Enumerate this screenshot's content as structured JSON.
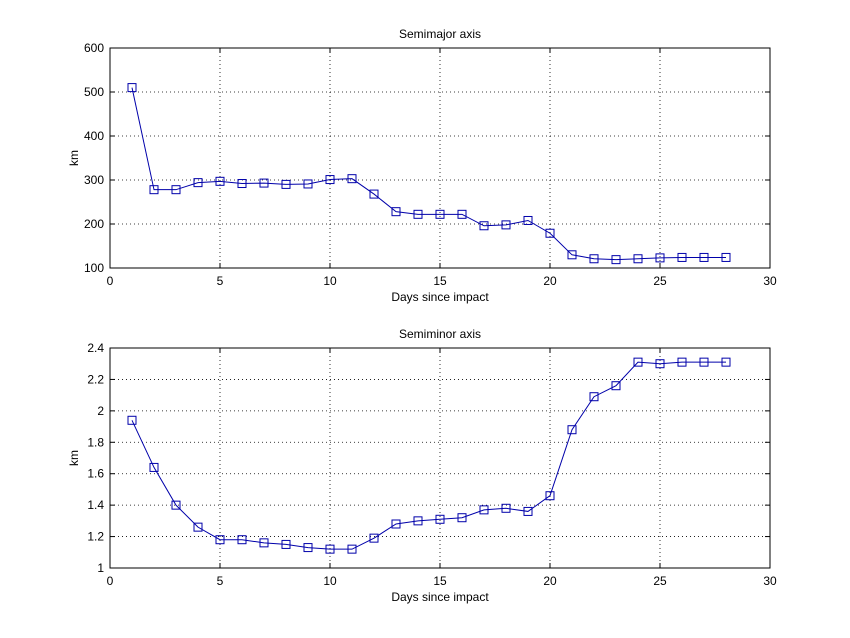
{
  "chart_data": [
    {
      "type": "line",
      "title": "Semimajor axis",
      "xlabel": "Days since impact",
      "ylabel": "km",
      "xlim": [
        0,
        30
      ],
      "ylim": [
        100,
        600
      ],
      "xticks": [
        "0",
        "5",
        "10",
        "15",
        "20",
        "25",
        "30"
      ],
      "yticks": [
        "100",
        "200",
        "300",
        "400",
        "500",
        "600"
      ],
      "grid": true,
      "color": "#0000aa",
      "marker": "square",
      "x": [
        1,
        2,
        3,
        4,
        5,
        6,
        7,
        8,
        9,
        10,
        11,
        12,
        13,
        14,
        15,
        16,
        17,
        18,
        19,
        20,
        21,
        22,
        23,
        24,
        25,
        26,
        27,
        28
      ],
      "values": [
        510,
        278,
        278,
        294,
        297,
        292,
        293,
        290,
        291,
        301,
        303,
        268,
        228,
        222,
        222,
        222,
        196,
        198,
        208,
        179,
        130,
        121,
        119,
        121,
        123,
        124,
        124,
        124
      ]
    },
    {
      "type": "line",
      "title": "Semiminor axis",
      "xlabel": "Days since impact",
      "ylabel": "km",
      "xlim": [
        0,
        30
      ],
      "ylim": [
        1,
        2.4
      ],
      "xticks": [
        "0",
        "5",
        "10",
        "15",
        "20",
        "25",
        "30"
      ],
      "yticks": [
        "1",
        "1.2",
        "1.4",
        "1.6",
        "1.8",
        "2",
        "2.2",
        "2.4"
      ],
      "grid": true,
      "color": "#0000aa",
      "marker": "square",
      "x": [
        1,
        2,
        3,
        4,
        5,
        6,
        7,
        8,
        9,
        10,
        11,
        12,
        13,
        14,
        15,
        16,
        17,
        18,
        19,
        20,
        21,
        22,
        23,
        24,
        25,
        26,
        27,
        28
      ],
      "values": [
        1.94,
        1.64,
        1.4,
        1.26,
        1.18,
        1.18,
        1.16,
        1.15,
        1.13,
        1.12,
        1.12,
        1.19,
        1.28,
        1.3,
        1.31,
        1.32,
        1.37,
        1.38,
        1.36,
        1.46,
        1.88,
        2.09,
        2.16,
        2.31,
        2.3,
        2.31,
        2.31,
        2.31
      ]
    }
  ]
}
